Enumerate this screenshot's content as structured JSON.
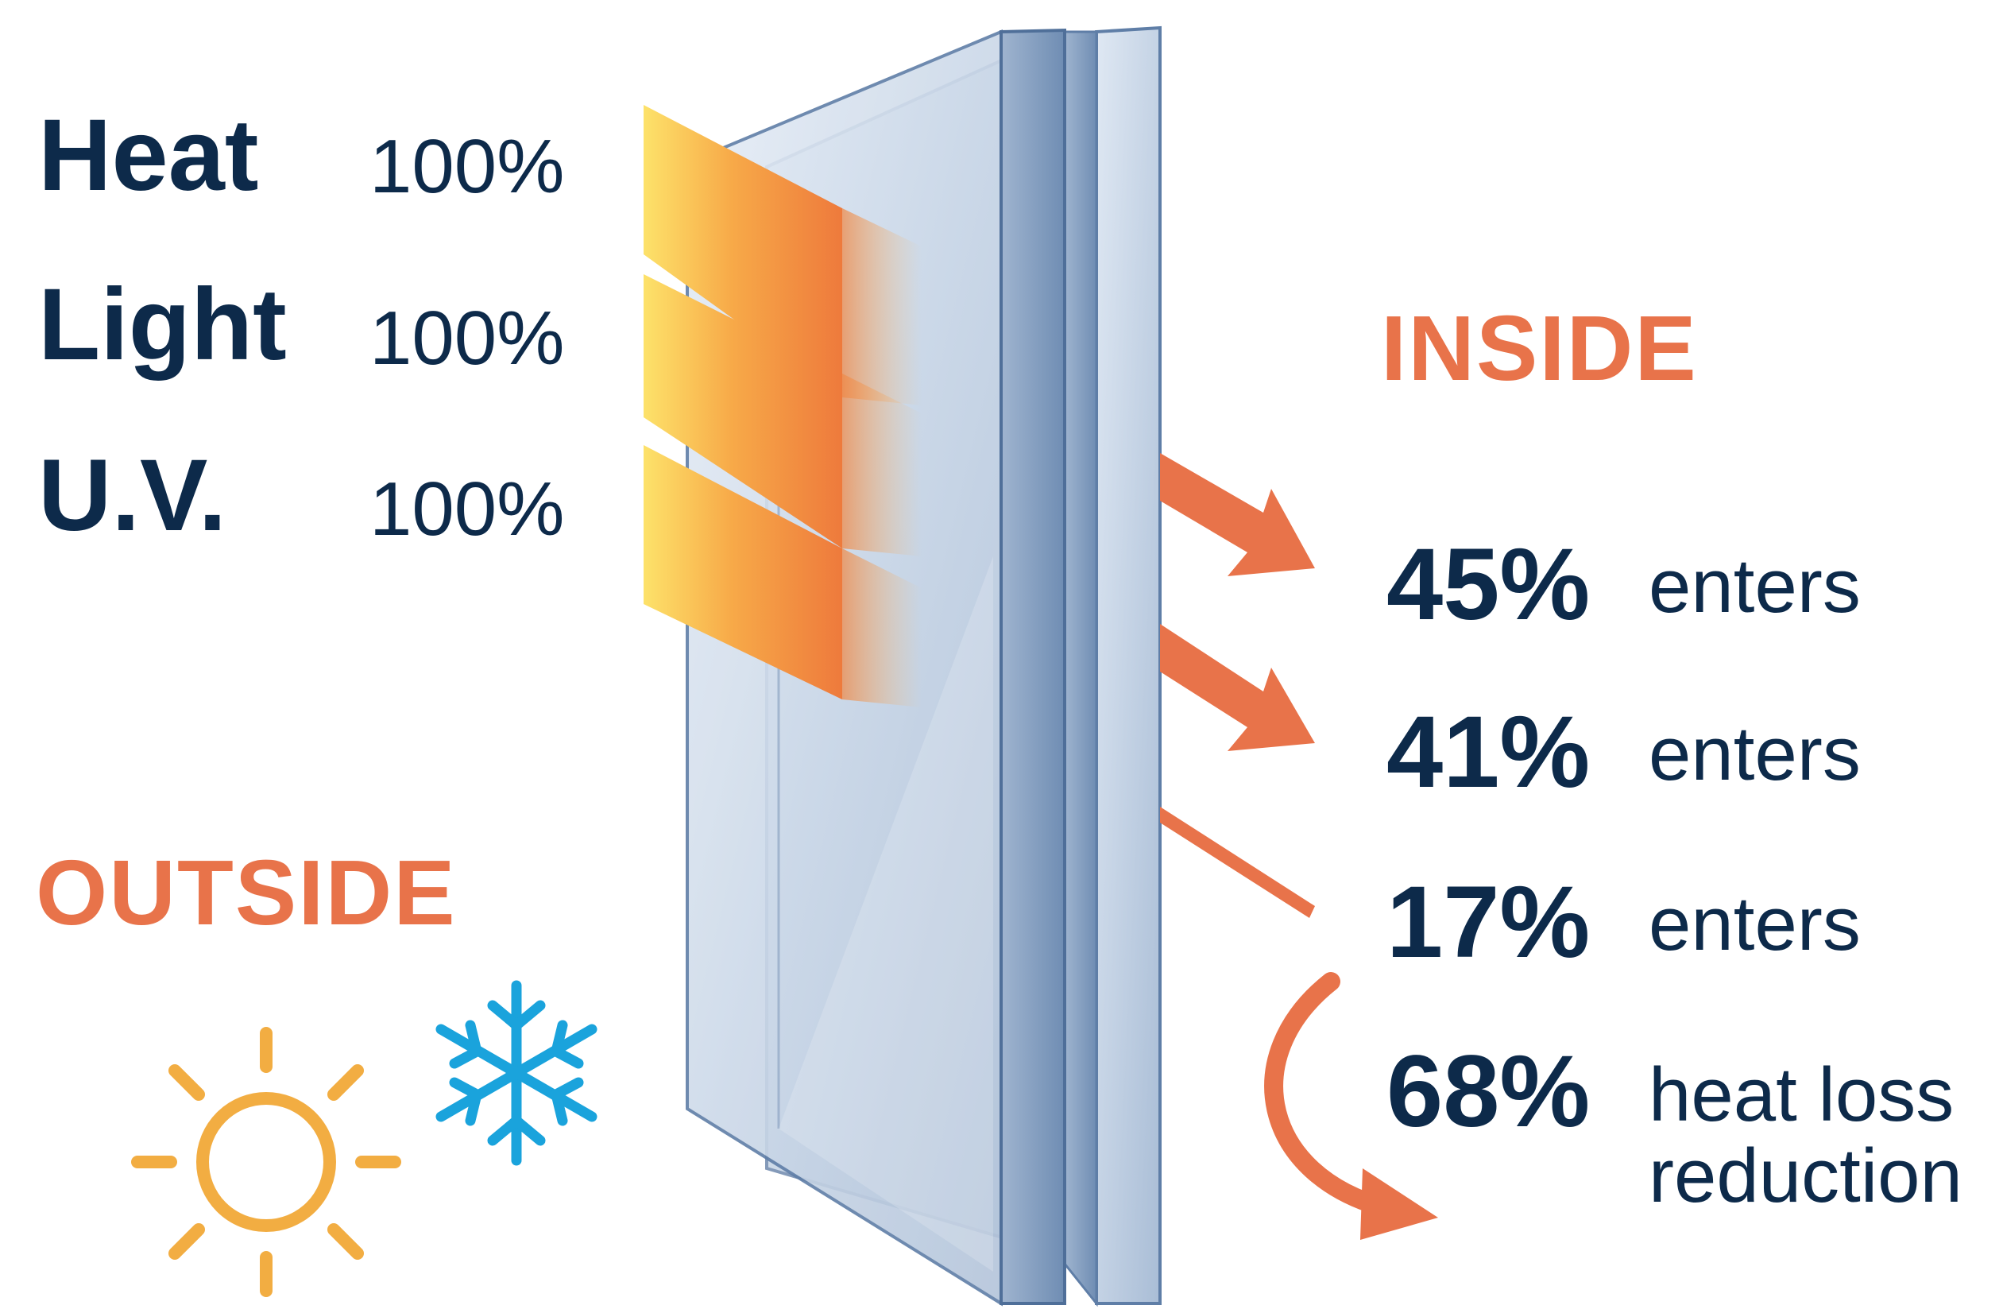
{
  "incoming": [
    {
      "name": "Heat",
      "percent": "100%"
    },
    {
      "name": "Light",
      "percent": "100%"
    },
    {
      "name": "U.V.",
      "percent": "100%"
    }
  ],
  "outgoing": [
    {
      "percent": "45%",
      "label": "enters"
    },
    {
      "percent": "41%",
      "label": "enters"
    },
    {
      "percent": "17%",
      "label": "enters"
    },
    {
      "percent": "68%",
      "label_line1": "heat loss",
      "label_line2": "reduction"
    }
  ],
  "sides": {
    "inside": "INSIDE",
    "outside": "OUTSIDE"
  },
  "icons": {
    "weather": [
      "sun-icon",
      "snowflake-icon"
    ]
  },
  "colors": {
    "navy_text": "#0d2a4a",
    "orange_accent": "#e8734a",
    "sun_yellow": "#f2ad42",
    "snowflake_blue": "#1aa3dc",
    "glass_blue": "#b9c9de"
  }
}
